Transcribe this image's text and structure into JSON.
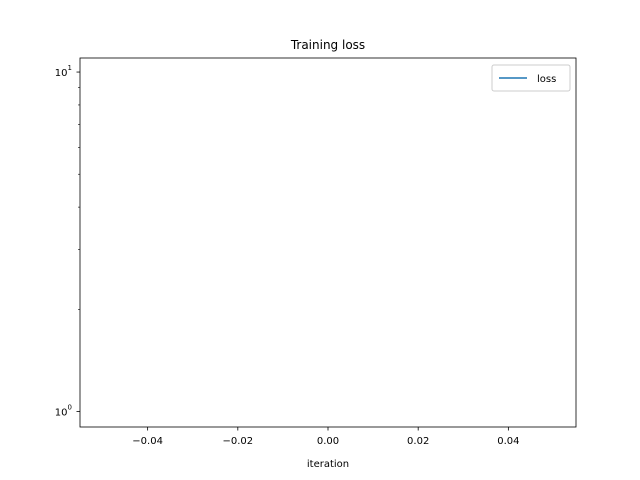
{
  "chart_data": {
    "type": "line",
    "title": "Training loss",
    "xlabel": "iteration",
    "ylabel": "",
    "xscale": "linear",
    "yscale": "log",
    "xlim": [
      -0.055,
      0.055
    ],
    "ylim": [
      0.9,
      11.0
    ],
    "x_ticks": [
      {
        "value": -0.04,
        "label": "−0.04"
      },
      {
        "value": -0.02,
        "label": "−0.02"
      },
      {
        "value": 0.0,
        "label": "0.00"
      },
      {
        "value": 0.02,
        "label": "0.02"
      },
      {
        "value": 0.04,
        "label": "0.04"
      }
    ],
    "y_major_ticks": [
      {
        "value": 1,
        "base": "10",
        "exp": "0"
      },
      {
        "value": 10,
        "base": "10",
        "exp": "1"
      }
    ],
    "y_minor_ticks": [
      2,
      3,
      4,
      5,
      6,
      7,
      8,
      9
    ],
    "series": [
      {
        "name": "loss",
        "color": "#1f77b4",
        "x": [],
        "y": []
      }
    ],
    "legend": {
      "position": "top-right"
    },
    "grid": false
  }
}
